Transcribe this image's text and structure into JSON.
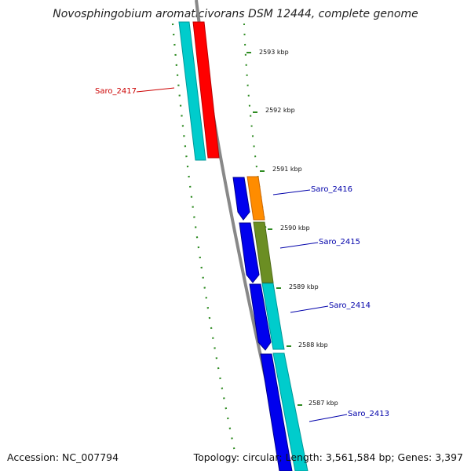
{
  "title": "Novosphingobium aromaticivorans DSM 12444, complete genome",
  "footer": {
    "accession": "Accession: NC_007794",
    "summary": "Topology: circular; Length: 3,561,584 bp; Genes: 3,397"
  },
  "ticks": [
    {
      "label": "2593 kbp"
    },
    {
      "label": "2592 kbp"
    },
    {
      "label": "2591 kbp"
    },
    {
      "label": "2590 kbp"
    },
    {
      "label": "2589 kbp"
    },
    {
      "label": "2588 kbp"
    },
    {
      "label": "2587 kbp"
    }
  ],
  "genes": [
    {
      "label": "Saro_2417",
      "color": "#cc0000"
    },
    {
      "label": "Saro_2416",
      "color": "#0000aa"
    },
    {
      "label": "Saro_2415",
      "color": "#0000aa"
    },
    {
      "label": "Saro_2414",
      "color": "#0000aa"
    },
    {
      "label": "Saro_2413",
      "color": "#0000aa"
    }
  ],
  "colors": {
    "backbone": "#888888",
    "cds_forward": "#ff0000",
    "cds_reverse": "#0000ee",
    "cog_cyan": "#00cccc",
    "cog_orange": "#ff8c00",
    "cog_olive": "#6b8e23",
    "tick_green": "#2e8b22"
  }
}
